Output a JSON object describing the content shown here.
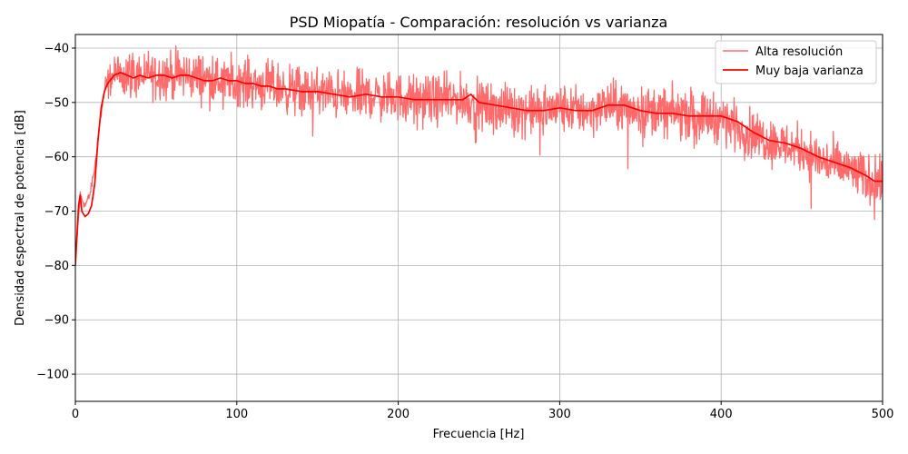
{
  "chart_data": {
    "type": "line",
    "title": "PSD Miopatía - Comparación: resolución vs varianza",
    "xlabel": "Frecuencia [Hz]",
    "ylabel": "Densidad espectral de potencia [dB]",
    "xlim": [
      0,
      500
    ],
    "ylim": [
      -105,
      -37.5
    ],
    "xticks": [
      0,
      100,
      200,
      300,
      400,
      500
    ],
    "yticks": [
      -100,
      -90,
      -80,
      -70,
      -60,
      -50,
      -40
    ],
    "xtick_labels": [
      "0",
      "100",
      "200",
      "300",
      "400",
      "500"
    ],
    "ytick_labels": [
      "−100",
      "−90",
      "−80",
      "−70",
      "−60",
      "−50",
      "−40"
    ],
    "grid": true,
    "legend_position": "top-right",
    "series": [
      {
        "name": "Alta resolución",
        "color": "#ff6b6b",
        "style": "noisy",
        "x": [
          0,
          3,
          6,
          9,
          12,
          15,
          18,
          22,
          26,
          30,
          40,
          50,
          60,
          70,
          80,
          90,
          100,
          110,
          120,
          130,
          140,
          150,
          160,
          170,
          180,
          190,
          200,
          210,
          220,
          230,
          240,
          250,
          260,
          270,
          280,
          290,
          300,
          310,
          320,
          330,
          340,
          350,
          360,
          370,
          380,
          390,
          400,
          410,
          420,
          430,
          440,
          450,
          460,
          470,
          480,
          490,
          500
        ],
        "y": [
          -79,
          -67,
          -69,
          -67,
          -62,
          -54,
          -48,
          -45.5,
          -44.5,
          -44.5,
          -45,
          -44.8,
          -45,
          -45,
          -45.5,
          -46,
          -46,
          -46.5,
          -47,
          -47.5,
          -48,
          -48,
          -48.5,
          -49,
          -48.5,
          -49,
          -49,
          -49.5,
          -49.5,
          -49.5,
          -49.5,
          -50.5,
          -51,
          -51,
          -51.5,
          -51.5,
          -51,
          -51.5,
          -51.5,
          -50.5,
          -51,
          -51.5,
          -51.5,
          -52,
          -52,
          -52.5,
          -53,
          -54.5,
          -56,
          -57,
          -58,
          -58.5,
          -60.5,
          -61.5,
          -62.5,
          -64,
          -65
        ]
      },
      {
        "name": "Muy baja varianza",
        "color": "#ff0000",
        "style": "smooth",
        "x": [
          0,
          2,
          3,
          4,
          6,
          8,
          10,
          12,
          14,
          16,
          18,
          20,
          24,
          28,
          32,
          36,
          40,
          45,
          50,
          55,
          60,
          65,
          70,
          75,
          80,
          85,
          90,
          95,
          100,
          105,
          110,
          115,
          120,
          125,
          130,
          140,
          150,
          160,
          170,
          180,
          190,
          200,
          210,
          220,
          230,
          240,
          245,
          250,
          260,
          270,
          280,
          290,
          300,
          310,
          320,
          330,
          340,
          350,
          360,
          370,
          380,
          390,
          400,
          410,
          420,
          430,
          440,
          450,
          460,
          470,
          480,
          490,
          495,
          500
        ],
        "y": [
          -80,
          -69,
          -67,
          -70,
          -71,
          -70.5,
          -69,
          -65,
          -57,
          -51,
          -48,
          -46.5,
          -45,
          -44.5,
          -45,
          -45.5,
          -45,
          -45.5,
          -45,
          -45,
          -45.5,
          -45,
          -45,
          -45.5,
          -46,
          -46,
          -45.5,
          -46,
          -46,
          -46.5,
          -46.5,
          -47,
          -47,
          -47.5,
          -47.5,
          -48,
          -48,
          -48.5,
          -49,
          -48.5,
          -49,
          -49,
          -49.5,
          -49.5,
          -49.5,
          -49.5,
          -48.5,
          -50,
          -50.5,
          -51,
          -51.5,
          -51.5,
          -51,
          -51.5,
          -51.5,
          -50.5,
          -50.5,
          -51.5,
          -52,
          -52,
          -52.5,
          -52.5,
          -52.5,
          -53.5,
          -55.5,
          -57,
          -57.5,
          -58.5,
          -60,
          -61,
          -62,
          -63.5,
          -64.5,
          -64.5
        ]
      }
    ]
  }
}
